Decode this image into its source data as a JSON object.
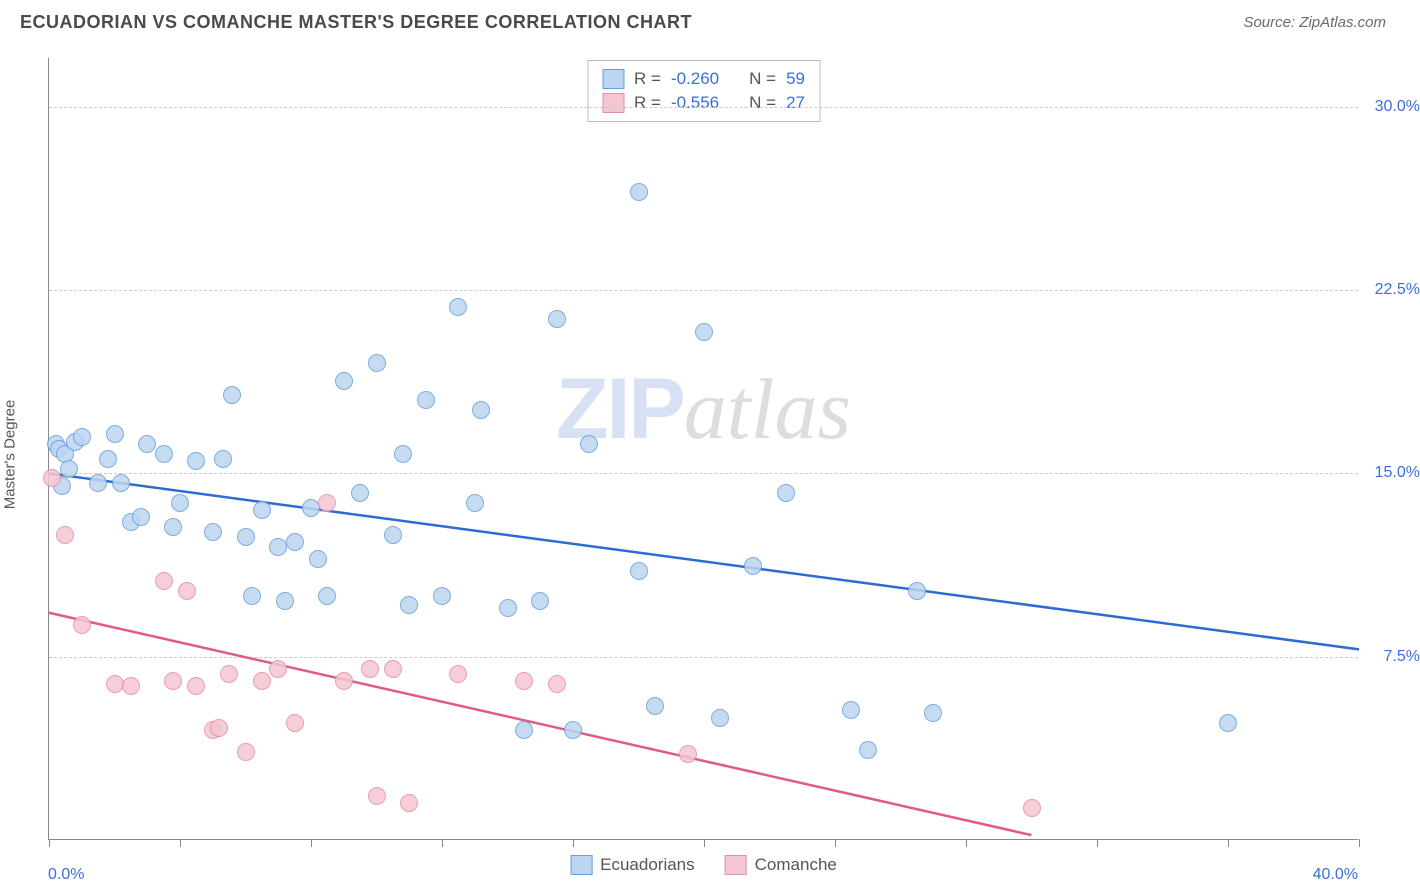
{
  "title": "ECUADORIAN VS COMANCHE MASTER'S DEGREE CORRELATION CHART",
  "source": "Source: ZipAtlas.com",
  "ylabel": "Master's Degree",
  "watermark": {
    "part1": "ZIP",
    "part2": "atlas"
  },
  "chart": {
    "type": "scatter",
    "xlim": [
      0,
      40
    ],
    "ylim": [
      0,
      32
    ],
    "y_gridlines": [
      7.5,
      15.0,
      22.5,
      30.0
    ],
    "y_tick_labels": [
      "7.5%",
      "15.0%",
      "22.5%",
      "30.0%"
    ],
    "x_ticks": [
      0,
      4,
      8,
      12,
      16,
      20,
      24,
      28,
      32,
      36,
      40
    ],
    "x_axis_label_left": "0.0%",
    "x_axis_label_right": "40.0%",
    "background_color": "#ffffff",
    "grid_color": "#cccccc",
    "marker_radius": 9,
    "series": [
      {
        "name": "Ecuadorians",
        "fill": "#bcd5f0",
        "stroke": "#6a9ed8",
        "trend_color": "#2d6cd0",
        "trend": {
          "x1": 0,
          "y1": 15.0,
          "x2": 40,
          "y2": 7.8
        },
        "R_label": "R =",
        "R_value": "-0.260",
        "N_label": "N =",
        "N_value": "59",
        "points": [
          [
            0.2,
            16.2
          ],
          [
            0.3,
            16.0
          ],
          [
            0.5,
            15.8
          ],
          [
            0.6,
            15.2
          ],
          [
            0.8,
            16.3
          ],
          [
            0.4,
            14.5
          ],
          [
            1.0,
            16.5
          ],
          [
            1.5,
            14.6
          ],
          [
            1.8,
            15.6
          ],
          [
            2.0,
            16.6
          ],
          [
            2.2,
            14.6
          ],
          [
            2.5,
            13.0
          ],
          [
            2.8,
            13.2
          ],
          [
            3.0,
            16.2
          ],
          [
            3.5,
            15.8
          ],
          [
            3.8,
            12.8
          ],
          [
            4.0,
            13.8
          ],
          [
            4.5,
            15.5
          ],
          [
            5.0,
            12.6
          ],
          [
            5.3,
            15.6
          ],
          [
            5.6,
            18.2
          ],
          [
            6.0,
            12.4
          ],
          [
            6.2,
            10.0
          ],
          [
            6.5,
            13.5
          ],
          [
            7.0,
            12.0
          ],
          [
            7.2,
            9.8
          ],
          [
            7.5,
            12.2
          ],
          [
            8.0,
            13.6
          ],
          [
            8.2,
            11.5
          ],
          [
            8.5,
            10.0
          ],
          [
            9.0,
            18.8
          ],
          [
            9.5,
            14.2
          ],
          [
            10.0,
            19.5
          ],
          [
            10.5,
            12.5
          ],
          [
            10.8,
            15.8
          ],
          [
            11.0,
            9.6
          ],
          [
            11.5,
            18.0
          ],
          [
            12.0,
            10.0
          ],
          [
            12.5,
            21.8
          ],
          [
            13.0,
            13.8
          ],
          [
            13.2,
            17.6
          ],
          [
            14.0,
            9.5
          ],
          [
            14.5,
            4.5
          ],
          [
            15.0,
            9.8
          ],
          [
            15.5,
            21.3
          ],
          [
            16.0,
            4.5
          ],
          [
            16.5,
            16.2
          ],
          [
            18.0,
            26.5
          ],
          [
            18.0,
            11.0
          ],
          [
            18.5,
            5.5
          ],
          [
            20.0,
            20.8
          ],
          [
            20.5,
            5.0
          ],
          [
            21.5,
            11.2
          ],
          [
            22.5,
            14.2
          ],
          [
            24.5,
            5.3
          ],
          [
            25.0,
            3.7
          ],
          [
            26.5,
            10.2
          ],
          [
            27.0,
            5.2
          ],
          [
            36.0,
            4.8
          ]
        ]
      },
      {
        "name": "Comanche",
        "fill": "#f4c6d2",
        "stroke": "#e38fa6",
        "trend_color": "#e05a82",
        "trend": {
          "x1": 0,
          "y1": 9.3,
          "x2": 30,
          "y2": 0.2
        },
        "R_label": "R =",
        "R_value": "-0.556",
        "N_label": "N =",
        "N_value": "27",
        "points": [
          [
            0.1,
            14.8
          ],
          [
            0.5,
            12.5
          ],
          [
            1.0,
            8.8
          ],
          [
            2.0,
            6.4
          ],
          [
            2.5,
            6.3
          ],
          [
            3.5,
            10.6
          ],
          [
            3.8,
            6.5
          ],
          [
            4.2,
            10.2
          ],
          [
            4.5,
            6.3
          ],
          [
            5.0,
            4.5
          ],
          [
            5.2,
            4.6
          ],
          [
            5.5,
            6.8
          ],
          [
            6.0,
            3.6
          ],
          [
            6.5,
            6.5
          ],
          [
            7.0,
            7.0
          ],
          [
            7.5,
            4.8
          ],
          [
            8.5,
            13.8
          ],
          [
            9.0,
            6.5
          ],
          [
            9.8,
            7.0
          ],
          [
            10.0,
            1.8
          ],
          [
            10.5,
            7.0
          ],
          [
            11.0,
            1.5
          ],
          [
            12.5,
            6.8
          ],
          [
            14.5,
            6.5
          ],
          [
            15.5,
            6.4
          ],
          [
            19.5,
            3.5
          ],
          [
            30.0,
            1.3
          ]
        ]
      }
    ]
  },
  "bottom_legend": [
    {
      "label": "Ecuadorians",
      "fill": "#bcd5f0",
      "stroke": "#6a9ed8"
    },
    {
      "label": "Comanche",
      "fill": "#f4c6d2",
      "stroke": "#e38fa6"
    }
  ]
}
